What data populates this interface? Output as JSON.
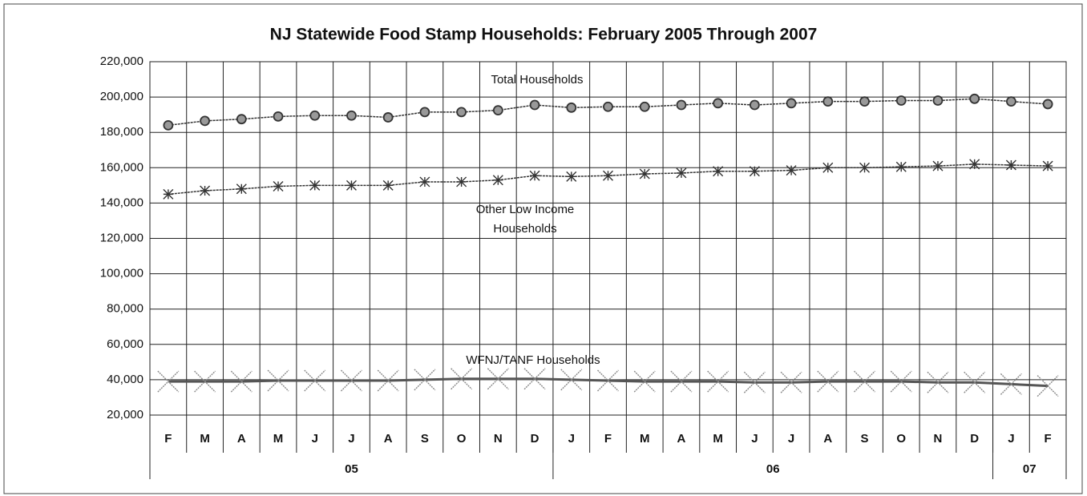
{
  "chart_data": {
    "type": "line",
    "title": "NJ Statewide Food Stamp Households: February 2005 Through 2007",
    "categories": [
      "F",
      "M",
      "A",
      "M",
      "J",
      "J",
      "A",
      "S",
      "O",
      "N",
      "D",
      "J",
      "F",
      "M",
      "A",
      "M",
      "J",
      "J",
      "A",
      "S",
      "O",
      "N",
      "D",
      "J",
      "F"
    ],
    "category_groups": [
      {
        "label": "05",
        "count": 11
      },
      {
        "label": "06",
        "count": 12
      },
      {
        "label": "07",
        "count": 2
      }
    ],
    "ylim": [
      20000,
      220000
    ],
    "yticks": [
      {
        "value": 20000,
        "label": "20,000"
      },
      {
        "value": 40000,
        "label": "40,000"
      },
      {
        "value": 60000,
        "label": "60,000"
      },
      {
        "value": 80000,
        "label": "80,000"
      },
      {
        "value": 100000,
        "label": "100,000"
      },
      {
        "value": 120000,
        "label": "120,000"
      },
      {
        "value": 140000,
        "label": "140,000"
      },
      {
        "value": 160000,
        "label": "160,000"
      },
      {
        "value": 180000,
        "label": "180,000"
      },
      {
        "value": 200000,
        "label": "200,000"
      },
      {
        "value": 220000,
        "label": "220,000"
      }
    ],
    "grid": true,
    "series": [
      {
        "name": "Total Households",
        "color": "#333333",
        "marker": "circle",
        "values": [
          184000,
          186500,
          187500,
          189000,
          189500,
          189500,
          188500,
          191500,
          191500,
          192500,
          195500,
          194000,
          194500,
          194500,
          195500,
          196500,
          195500,
          196500,
          197500,
          197500,
          198000,
          198000,
          199000,
          197500,
          196000
        ]
      },
      {
        "name": "Other Low Income Households",
        "color": "#333333",
        "marker": "asterisk",
        "values": [
          145000,
          147000,
          148000,
          149500,
          150000,
          150000,
          150000,
          152000,
          152000,
          153000,
          155500,
          155000,
          155500,
          156500,
          157000,
          158000,
          158000,
          158500,
          160000,
          160000,
          160500,
          161000,
          162000,
          161500,
          161000
        ]
      },
      {
        "name": "WFNJ/TANF Households",
        "color": "#555555",
        "marker": "x",
        "values": [
          39000,
          39000,
          39000,
          39500,
          39500,
          39500,
          39500,
          40000,
          40500,
          40500,
          40500,
          40000,
          39500,
          39000,
          39000,
          39000,
          38500,
          38500,
          39000,
          39000,
          39000,
          38500,
          38500,
          37500,
          36500
        ]
      }
    ]
  }
}
